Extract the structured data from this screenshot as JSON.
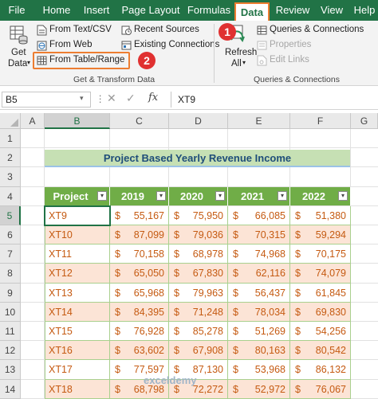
{
  "ribbon_tabs": [
    "File",
    "Home",
    "Insert",
    "Page Layout",
    "Formulas",
    "Data",
    "Review",
    "View",
    "Help"
  ],
  "active_tab": "Data",
  "get_transform": {
    "get_data_line1": "Get",
    "get_data_line2": "Data",
    "from_text_csv": "From Text/CSV",
    "from_web": "From Web",
    "from_table_range": "From Table/Range",
    "recent_sources": "Recent Sources",
    "existing_connections": "Existing Connections",
    "group_label": "Get & Transform Data"
  },
  "queries": {
    "refresh_all_line1": "Refresh",
    "refresh_all_line2": "All",
    "queries_connections": "Queries & Connections",
    "properties": "Properties",
    "edit_links": "Edit Links",
    "group_label": "Queries & Connections"
  },
  "callouts": [
    "1",
    "2"
  ],
  "formula_bar": {
    "name_box": "B5",
    "formula": "XT9"
  },
  "columns": [
    "A",
    "B",
    "C",
    "D",
    "E",
    "F",
    "G"
  ],
  "rows": [
    "1",
    "2",
    "3",
    "4",
    "5",
    "6",
    "7",
    "8",
    "9",
    "10",
    "11",
    "12",
    "13",
    "14"
  ],
  "table": {
    "title": "Project Based Yearly Revenue Income",
    "headers": [
      "Project",
      "2019",
      "2020",
      "2021",
      "2022"
    ],
    "currency": "$",
    "data": [
      [
        "XT9",
        "55,167",
        "75,950",
        "66,085",
        "51,380"
      ],
      [
        "XT10",
        "87,099",
        "79,036",
        "70,315",
        "59,294"
      ],
      [
        "XT11",
        "70,158",
        "68,978",
        "74,968",
        "70,175"
      ],
      [
        "XT12",
        "65,050",
        "67,830",
        "62,116",
        "74,079"
      ],
      [
        "XT13",
        "65,968",
        "79,963",
        "56,437",
        "61,845"
      ],
      [
        "XT14",
        "84,395",
        "71,248",
        "78,034",
        "69,830"
      ],
      [
        "XT15",
        "76,928",
        "85,278",
        "51,269",
        "54,256"
      ],
      [
        "XT16",
        "63,602",
        "67,908",
        "80,163",
        "80,542"
      ],
      [
        "XT17",
        "77,597",
        "87,130",
        "53,968",
        "86,132"
      ],
      [
        "XT18",
        "68,798",
        "72,272",
        "52,972",
        "76,067"
      ]
    ]
  },
  "watermark": "exceldemy",
  "colors": {
    "excel_green": "#217346",
    "header_green": "#70ad47",
    "stripe": "#fce4d6",
    "highlight_orange": "#ed7d31",
    "callout_red": "#e03131"
  }
}
